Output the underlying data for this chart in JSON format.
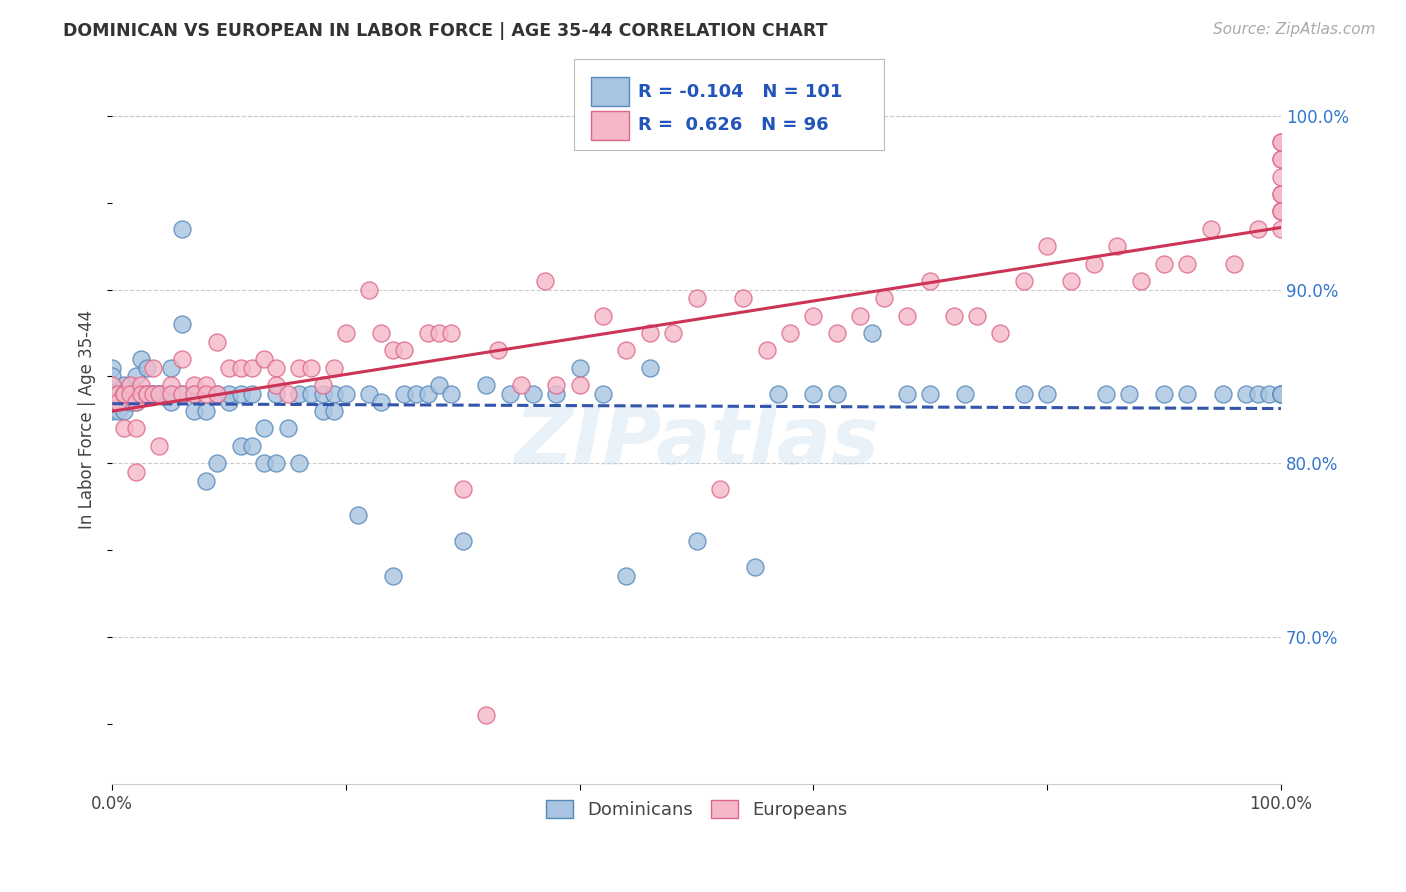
{
  "title": "DOMINICAN VS EUROPEAN IN LABOR FORCE | AGE 35-44 CORRELATION CHART",
  "source": "Source: ZipAtlas.com",
  "ylabel": "In Labor Force | Age 35-44",
  "xlim": [
    0.0,
    1.0
  ],
  "ylim": [
    0.615,
    1.035
  ],
  "x_ticks": [
    0.0,
    0.2,
    0.4,
    0.6,
    0.8,
    1.0
  ],
  "x_tick_labels": [
    "0.0%",
    "",
    "",
    "",
    "",
    "100.0%"
  ],
  "y_tick_labels_right": [
    "70.0%",
    "80.0%",
    "90.0%",
    "100.0%"
  ],
  "y_ticks_right": [
    0.7,
    0.8,
    0.9,
    1.0
  ],
  "dominicans_color": "#a8c4e0",
  "europeans_color": "#f4b8c8",
  "dominicans_edge": "#5588bb",
  "europeans_edge": "#dd6688",
  "trendline_dominicans_color": "#3355aa",
  "trendline_europeans_color": "#cc3355",
  "watermark": "ZIPatlas",
  "legend_blue_label": "Dominicans",
  "legend_pink_label": "Europeans",
  "R_dominicans": -0.104,
  "N_dominicans": 101,
  "R_europeans": 0.626,
  "N_europeans": 96,
  "dominicans_x": [
    0.0,
    0.0,
    0.0,
    0.0,
    0.0,
    0.005,
    0.005,
    0.005,
    0.01,
    0.01,
    0.01,
    0.01,
    0.015,
    0.015,
    0.015,
    0.02,
    0.02,
    0.02,
    0.02,
    0.025,
    0.025,
    0.03,
    0.03,
    0.03,
    0.035,
    0.035,
    0.04,
    0.04,
    0.04,
    0.05,
    0.05,
    0.05,
    0.06,
    0.06,
    0.06,
    0.07,
    0.07,
    0.07,
    0.08,
    0.08,
    0.09,
    0.09,
    0.1,
    0.1,
    0.11,
    0.11,
    0.12,
    0.12,
    0.13,
    0.13,
    0.14,
    0.14,
    0.15,
    0.16,
    0.16,
    0.17,
    0.18,
    0.18,
    0.19,
    0.19,
    0.2,
    0.21,
    0.22,
    0.23,
    0.24,
    0.25,
    0.26,
    0.27,
    0.28,
    0.29,
    0.3,
    0.32,
    0.34,
    0.36,
    0.38,
    0.4,
    0.42,
    0.44,
    0.46,
    0.5,
    0.55,
    0.57,
    0.6,
    0.62,
    0.65,
    0.68,
    0.7,
    0.73,
    0.78,
    0.8,
    0.85,
    0.87,
    0.9,
    0.92,
    0.95,
    0.97,
    0.98,
    0.99,
    1.0,
    1.0,
    1.0
  ],
  "dominicans_y": [
    0.84,
    0.855,
    0.84,
    0.85,
    0.83,
    0.84,
    0.84,
    0.83,
    0.84,
    0.84,
    0.845,
    0.83,
    0.84,
    0.84,
    0.835,
    0.85,
    0.84,
    0.835,
    0.84,
    0.86,
    0.84,
    0.855,
    0.84,
    0.84,
    0.84,
    0.84,
    0.84,
    0.84,
    0.84,
    0.855,
    0.84,
    0.835,
    0.935,
    0.88,
    0.84,
    0.83,
    0.84,
    0.84,
    0.83,
    0.79,
    0.84,
    0.8,
    0.835,
    0.84,
    0.84,
    0.81,
    0.84,
    0.81,
    0.82,
    0.8,
    0.84,
    0.8,
    0.82,
    0.84,
    0.8,
    0.84,
    0.84,
    0.83,
    0.84,
    0.83,
    0.84,
    0.77,
    0.84,
    0.835,
    0.735,
    0.84,
    0.84,
    0.84,
    0.845,
    0.84,
    0.755,
    0.845,
    0.84,
    0.84,
    0.84,
    0.855,
    0.84,
    0.735,
    0.855,
    0.755,
    0.74,
    0.84,
    0.84,
    0.84,
    0.875,
    0.84,
    0.84,
    0.84,
    0.84,
    0.84,
    0.84,
    0.84,
    0.84,
    0.84,
    0.84,
    0.84,
    0.84,
    0.84,
    0.84,
    0.84,
    0.84
  ],
  "europeans_x": [
    0.0,
    0.0,
    0.005,
    0.005,
    0.01,
    0.01,
    0.01,
    0.015,
    0.015,
    0.02,
    0.02,
    0.02,
    0.025,
    0.025,
    0.03,
    0.03,
    0.035,
    0.035,
    0.04,
    0.04,
    0.05,
    0.05,
    0.06,
    0.06,
    0.07,
    0.07,
    0.08,
    0.08,
    0.09,
    0.09,
    0.1,
    0.11,
    0.12,
    0.13,
    0.14,
    0.14,
    0.15,
    0.16,
    0.17,
    0.18,
    0.19,
    0.2,
    0.22,
    0.23,
    0.24,
    0.25,
    0.27,
    0.28,
    0.29,
    0.3,
    0.32,
    0.33,
    0.35,
    0.37,
    0.38,
    0.4,
    0.42,
    0.44,
    0.46,
    0.48,
    0.5,
    0.52,
    0.54,
    0.56,
    0.58,
    0.6,
    0.62,
    0.64,
    0.66,
    0.68,
    0.7,
    0.72,
    0.74,
    0.76,
    0.78,
    0.8,
    0.82,
    0.84,
    0.86,
    0.88,
    0.9,
    0.92,
    0.94,
    0.96,
    0.98,
    1.0,
    1.0,
    1.0,
    1.0,
    1.0,
    1.0,
    1.0,
    1.0,
    1.0,
    1.0,
    1.0
  ],
  "europeans_y": [
    0.845,
    0.835,
    0.84,
    0.835,
    0.84,
    0.84,
    0.82,
    0.845,
    0.84,
    0.835,
    0.82,
    0.795,
    0.845,
    0.84,
    0.84,
    0.84,
    0.855,
    0.84,
    0.84,
    0.81,
    0.845,
    0.84,
    0.86,
    0.84,
    0.845,
    0.84,
    0.845,
    0.84,
    0.87,
    0.84,
    0.855,
    0.855,
    0.855,
    0.86,
    0.855,
    0.845,
    0.84,
    0.855,
    0.855,
    0.845,
    0.855,
    0.875,
    0.9,
    0.875,
    0.865,
    0.865,
    0.875,
    0.875,
    0.875,
    0.785,
    0.655,
    0.865,
    0.845,
    0.905,
    0.845,
    0.845,
    0.885,
    0.865,
    0.875,
    0.875,
    0.895,
    0.785,
    0.895,
    0.865,
    0.875,
    0.885,
    0.875,
    0.885,
    0.895,
    0.885,
    0.905,
    0.885,
    0.885,
    0.875,
    0.905,
    0.925,
    0.905,
    0.915,
    0.925,
    0.905,
    0.915,
    0.915,
    0.935,
    0.915,
    0.935,
    0.945,
    0.955,
    0.935,
    0.945,
    0.955,
    0.975,
    0.985,
    0.945,
    0.965,
    0.975,
    0.985
  ]
}
